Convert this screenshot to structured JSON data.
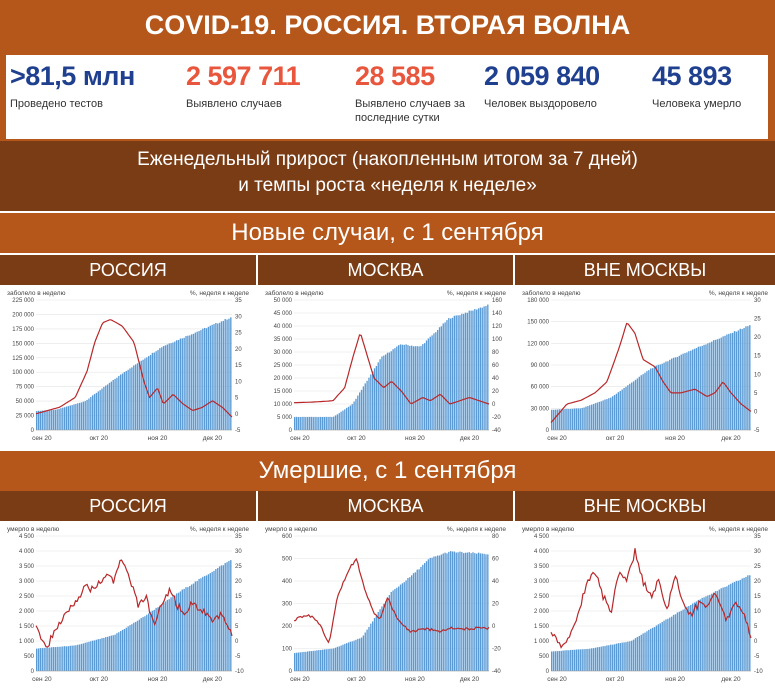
{
  "header": {
    "title": "COVID-19. РОССИЯ. ВТОРАЯ ВОЛНА",
    "stats": [
      {
        "value": ">81,5 млн",
        "label": "Проведено тестов",
        "color": "#1f3f8f"
      },
      {
        "value": "2 597 711",
        "label": "Выявлено случаев",
        "color": "#e8573d"
      },
      {
        "value": "28 585",
        "label": "Выявлено случаев за последние сутки",
        "color": "#e8573d"
      },
      {
        "value": "2 059 840",
        "label": "Человек выздоровело",
        "color": "#1f3f8f"
      },
      {
        "value": "45 893",
        "label": "Человека умерло",
        "color": "#1f3f8f"
      }
    ],
    "weekly_line1": "Еженедельный прирост (накопленным итогом за 7 дней)",
    "weekly_line2": "и темпы роста «неделя к неделе»"
  },
  "sections": [
    {
      "title": "Новые случаи, с 1 сентября",
      "regions": [
        "РОССИЯ",
        "МОСКВА",
        "ВНЕ МОСКВЫ"
      ]
    },
    {
      "title": "Умершие, с 1 сентября",
      "regions": [
        "РОССИЯ",
        "МОСКВА",
        "ВНЕ МОСКВЫ"
      ]
    }
  ],
  "colors": {
    "bar": "#5b9bd5",
    "line": "#b8282a",
    "accent": "#b5561a",
    "dark": "#7a3c14"
  },
  "chart_data": [
    {
      "type": "bar",
      "region": "РОССИЯ",
      "left_title": "заболело в неделю",
      "right_title": "%, неделя к неделе",
      "x_ticks": [
        "сен 20",
        "окт 20",
        "ноя 20",
        "дек 20"
      ],
      "left_ticks": [
        "0",
        "25 000",
        "50 000",
        "75 000",
        "100 000",
        "125 000",
        "150 000",
        "175 000",
        "200 000",
        "225 000"
      ],
      "left_range": [
        0,
        225000
      ],
      "right_ticks": [
        "-5",
        "0",
        "5",
        "10",
        "15",
        "20",
        "25",
        "30",
        "35"
      ],
      "right_range": [
        -5,
        35
      ],
      "bars": [
        [
          0,
          33000
        ],
        [
          0.1,
          35000
        ],
        [
          0.25,
          50000
        ],
        [
          0.45,
          100000
        ],
        [
          0.65,
          145000
        ],
        [
          1,
          195000
        ]
      ],
      "line": [
        [
          0,
          0
        ],
        [
          0.12,
          2
        ],
        [
          0.2,
          5
        ],
        [
          0.26,
          13
        ],
        [
          0.3,
          22
        ],
        [
          0.34,
          28
        ],
        [
          0.38,
          29
        ],
        [
          0.44,
          27
        ],
        [
          0.5,
          22
        ],
        [
          0.55,
          10
        ],
        [
          0.58,
          5
        ],
        [
          0.62,
          8
        ],
        [
          0.65,
          3
        ],
        [
          0.7,
          6
        ],
        [
          0.75,
          3
        ],
        [
          0.8,
          1
        ],
        [
          0.85,
          2
        ],
        [
          0.9,
          4
        ],
        [
          0.95,
          2
        ],
        [
          1,
          -1
        ]
      ]
    },
    {
      "type": "bar",
      "region": "МОСКВА",
      "left_title": "заболело в неделю",
      "right_title": "%, неделя к неделе",
      "x_ticks": [
        "сен 20",
        "окт 20",
        "ноя 20",
        "дек 20"
      ],
      "left_ticks": [
        "0",
        "5 000",
        "10 000",
        "15 000",
        "20 000",
        "25 000",
        "30 000",
        "35 000",
        "40 000",
        "45 000",
        "50 000"
      ],
      "left_range": [
        0,
        50000
      ],
      "right_ticks": [
        "-40",
        "-20",
        "0",
        "20",
        "40",
        "60",
        "80",
        "100",
        "120",
        "140",
        "160"
      ],
      "right_range": [
        -40,
        160
      ],
      "bars": [
        [
          0,
          5000
        ],
        [
          0.2,
          5000
        ],
        [
          0.3,
          10000
        ],
        [
          0.35,
          16000
        ],
        [
          0.45,
          28000
        ],
        [
          0.55,
          33000
        ],
        [
          0.65,
          32000
        ],
        [
          0.72,
          37000
        ],
        [
          0.8,
          43000
        ],
        [
          1,
          48000
        ]
      ],
      "line": [
        [
          0,
          2
        ],
        [
          0.1,
          3
        ],
        [
          0.2,
          5
        ],
        [
          0.26,
          25
        ],
        [
          0.3,
          70
        ],
        [
          0.34,
          110
        ],
        [
          0.37,
          80
        ],
        [
          0.41,
          40
        ],
        [
          0.46,
          25
        ],
        [
          0.5,
          35
        ],
        [
          0.55,
          20
        ],
        [
          0.6,
          0
        ],
        [
          0.66,
          10
        ],
        [
          0.7,
          5
        ],
        [
          0.75,
          15
        ],
        [
          0.8,
          0
        ],
        [
          0.85,
          5
        ],
        [
          0.9,
          10
        ],
        [
          0.95,
          5
        ],
        [
          1,
          0
        ]
      ]
    },
    {
      "type": "bar",
      "region": "ВНЕ МОСКВЫ",
      "left_title": "заболело в неделю",
      "right_title": "%, неделя к неделе",
      "x_ticks": [
        "сен 20",
        "окт 20",
        "ноя 20",
        "дек 20"
      ],
      "left_ticks": [
        "0",
        "30 000",
        "60 000",
        "90 000",
        "120 000",
        "150 000",
        "180 000"
      ],
      "left_range": [
        0,
        180000
      ],
      "right_ticks": [
        "-5",
        "0",
        "5",
        "10",
        "15",
        "20",
        "25",
        "30"
      ],
      "right_range": [
        -5,
        30
      ],
      "bars": [
        [
          0,
          28000
        ],
        [
          0.15,
          30000
        ],
        [
          0.3,
          45000
        ],
        [
          0.5,
          85000
        ],
        [
          0.7,
          110000
        ],
        [
          1,
          145000
        ]
      ],
      "line": [
        [
          0,
          -3
        ],
        [
          0.08,
          2
        ],
        [
          0.15,
          3
        ],
        [
          0.22,
          5
        ],
        [
          0.28,
          8
        ],
        [
          0.34,
          17
        ],
        [
          0.38,
          24
        ],
        [
          0.42,
          21
        ],
        [
          0.46,
          14
        ],
        [
          0.52,
          12
        ],
        [
          0.56,
          8
        ],
        [
          0.6,
          5
        ],
        [
          0.65,
          5
        ],
        [
          0.72,
          6
        ],
        [
          0.78,
          4
        ],
        [
          0.82,
          5
        ],
        [
          0.86,
          8
        ],
        [
          0.9,
          5
        ],
        [
          0.95,
          2
        ],
        [
          1,
          0
        ]
      ]
    },
    {
      "type": "bar",
      "region": "РОССИЯ",
      "left_title": "умерло в неделю",
      "right_title": "%, неделя к неделе",
      "x_ticks": [
        "сен 20",
        "окт 20",
        "ноя 20",
        "дек 20"
      ],
      "left_ticks": [
        "0",
        "500",
        "1 000",
        "1 500",
        "2 000",
        "2 500",
        "3 000",
        "3 500",
        "4 000",
        "4 500"
      ],
      "left_range": [
        0,
        4500
      ],
      "right_ticks": [
        "-10",
        "-5",
        "0",
        "5",
        "10",
        "15",
        "20",
        "25",
        "30",
        "35"
      ],
      "right_range": [
        -10,
        35
      ],
      "bars": [
        [
          0,
          750
        ],
        [
          0.2,
          850
        ],
        [
          0.4,
          1200
        ],
        [
          0.55,
          1800
        ],
        [
          0.75,
          2700
        ],
        [
          1,
          3700
        ]
      ],
      "line": [
        [
          0,
          5
        ],
        [
          0.05,
          -2
        ],
        [
          0.1,
          3
        ],
        [
          0.15,
          10
        ],
        [
          0.2,
          13
        ],
        [
          0.25,
          18
        ],
        [
          0.3,
          17
        ],
        [
          0.35,
          22
        ],
        [
          0.4,
          20
        ],
        [
          0.44,
          28
        ],
        [
          0.48,
          20
        ],
        [
          0.52,
          12
        ],
        [
          0.56,
          15
        ],
        [
          0.6,
          5
        ],
        [
          0.64,
          12
        ],
        [
          0.68,
          17
        ],
        [
          0.72,
          12
        ],
        [
          0.76,
          9
        ],
        [
          0.8,
          13
        ],
        [
          0.85,
          10
        ],
        [
          0.9,
          6
        ],
        [
          0.95,
          9
        ],
        [
          1,
          2
        ]
      ]
    },
    {
      "type": "bar",
      "region": "МОСКВА",
      "left_title": "умерло в неделю",
      "right_title": "%, неделя к неделе",
      "x_ticks": [
        "сен 20",
        "окт 20",
        "ноя 20",
        "дек 20"
      ],
      "left_ticks": [
        "0",
        "100",
        "200",
        "300",
        "400",
        "500",
        "600"
      ],
      "left_range": [
        0,
        600
      ],
      "right_ticks": [
        "-40",
        "-20",
        "0",
        "20",
        "40",
        "60",
        "80"
      ],
      "right_range": [
        -40,
        80
      ],
      "bars": [
        [
          0,
          80
        ],
        [
          0.2,
          100
        ],
        [
          0.35,
          150
        ],
        [
          0.5,
          350
        ],
        [
          0.6,
          420
        ],
        [
          0.7,
          500
        ],
        [
          0.8,
          530
        ],
        [
          1,
          520
        ]
      ],
      "line": [
        [
          0,
          5
        ],
        [
          0.07,
          10
        ],
        [
          0.12,
          5
        ],
        [
          0.18,
          -15
        ],
        [
          0.22,
          25
        ],
        [
          0.28,
          50
        ],
        [
          0.32,
          60
        ],
        [
          0.36,
          35
        ],
        [
          0.4,
          15
        ],
        [
          0.44,
          5
        ],
        [
          0.48,
          25
        ],
        [
          0.52,
          10
        ],
        [
          0.56,
          0
        ],
        [
          0.6,
          -5
        ],
        [
          0.65,
          -3
        ],
        [
          0.7,
          -3
        ],
        [
          0.75,
          -5
        ],
        [
          0.8,
          -2
        ],
        [
          0.85,
          -2
        ],
        [
          0.9,
          -3
        ],
        [
          0.95,
          -2
        ],
        [
          1,
          -2
        ]
      ]
    },
    {
      "type": "bar",
      "region": "ВНЕ МОСКВЫ",
      "left_title": "умерло в неделю",
      "right_title": "%, неделя к неделе",
      "x_ticks": [
        "сен 20",
        "окт 20",
        "ноя 20",
        "дек 20"
      ],
      "left_ticks": [
        "0",
        "500",
        "1 000",
        "1 500",
        "2 000",
        "2 500",
        "3 000",
        "3 500",
        "4 000",
        "4 500"
      ],
      "left_range": [
        0,
        4500
      ],
      "right_ticks": [
        "-10",
        "-5",
        "0",
        "5",
        "10",
        "15",
        "20",
        "25",
        "30",
        "35"
      ],
      "right_range": [
        -10,
        35
      ],
      "bars": [
        [
          0,
          650
        ],
        [
          0.2,
          750
        ],
        [
          0.4,
          1000
        ],
        [
          0.55,
          1600
        ],
        [
          0.75,
          2400
        ],
        [
          1,
          3200
        ]
      ],
      "line": [
        [
          0,
          3
        ],
        [
          0.05,
          -2
        ],
        [
          0.1,
          2
        ],
        [
          0.14,
          10
        ],
        [
          0.18,
          20
        ],
        [
          0.22,
          23
        ],
        [
          0.26,
          15
        ],
        [
          0.3,
          10
        ],
        [
          0.34,
          22
        ],
        [
          0.38,
          20
        ],
        [
          0.42,
          30
        ],
        [
          0.46,
          20
        ],
        [
          0.5,
          15
        ],
        [
          0.54,
          20
        ],
        [
          0.58,
          10
        ],
        [
          0.62,
          22
        ],
        [
          0.66,
          13
        ],
        [
          0.7,
          8
        ],
        [
          0.74,
          13
        ],
        [
          0.78,
          12
        ],
        [
          0.82,
          15
        ],
        [
          0.88,
          7
        ],
        [
          0.92,
          12
        ],
        [
          0.96,
          10
        ],
        [
          1,
          1
        ]
      ]
    }
  ]
}
